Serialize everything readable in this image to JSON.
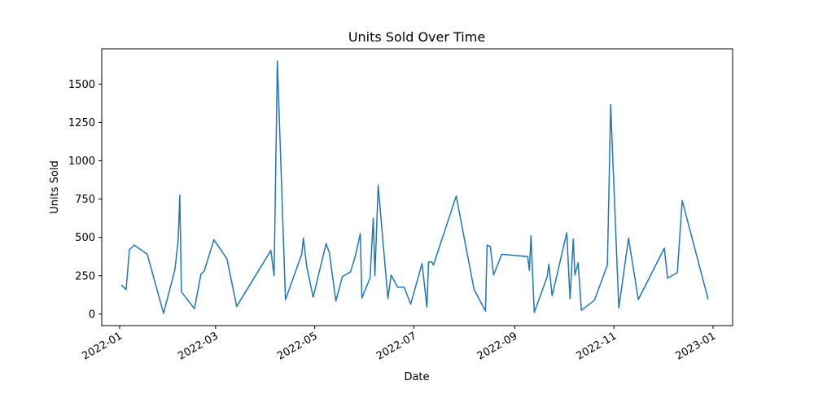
{
  "chart_data": {
    "type": "line",
    "title": "Units Sold Over Time",
    "xlabel": "Date",
    "ylabel": "Units Sold",
    "x_type": "date",
    "xlim": [
      "2021-12-21",
      "2023-01-13"
    ],
    "ylim": [
      -75,
      1730
    ],
    "grid": false,
    "x_ticks": [
      "2022-01",
      "2022-03",
      "2022-05",
      "2022-07",
      "2022-09",
      "2022-11",
      "2023-01"
    ],
    "y_ticks": [
      0,
      250,
      500,
      750,
      1000,
      1250,
      1500
    ],
    "line_color": "#1f77b4",
    "series": [
      {
        "x": [
          "2022-01-02",
          "2022-01-05",
          "2022-01-07",
          "2022-01-10",
          "2022-01-18",
          "2022-01-28",
          "2022-02-04",
          "2022-02-06",
          "2022-02-07",
          "2022-02-08",
          "2022-02-16",
          "2022-02-20",
          "2022-02-22",
          "2022-02-28",
          "2022-03-08",
          "2022-03-14",
          "2022-04-04",
          "2022-04-06",
          "2022-04-08",
          "2022-04-13",
          "2022-04-23",
          "2022-04-24",
          "2022-04-26",
          "2022-04-30",
          "2022-05-08",
          "2022-05-10",
          "2022-05-14",
          "2022-05-18",
          "2022-05-23",
          "2022-05-26",
          "2022-05-29",
          "2022-05-30",
          "2022-06-04",
          "2022-06-06",
          "2022-06-07",
          "2022-06-09",
          "2022-06-15",
          "2022-06-17",
          "2022-06-21",
          "2022-06-25",
          "2022-06-29",
          "2022-07-06",
          "2022-07-09",
          "2022-07-10",
          "2022-07-12",
          "2022-07-13",
          "2022-07-27",
          "2022-08-07",
          "2022-08-14",
          "2022-08-15",
          "2022-08-17",
          "2022-08-19",
          "2022-08-24",
          "2022-09-09",
          "2022-09-10",
          "2022-09-11",
          "2022-09-13",
          "2022-09-21",
          "2022-09-22",
          "2022-09-24",
          "2022-10-03",
          "2022-10-05",
          "2022-10-07",
          "2022-10-08",
          "2022-10-10",
          "2022-10-12",
          "2022-10-20",
          "2022-10-28",
          "2022-10-30",
          "2022-11-04",
          "2022-11-10",
          "2022-11-16",
          "2022-12-02",
          "2022-12-04",
          "2022-12-10",
          "2022-12-13",
          "2022-12-29"
        ],
        "values": [
          190,
          160,
          420,
          450,
          390,
          5,
          290,
          480,
          775,
          145,
          35,
          260,
          280,
          485,
          360,
          50,
          415,
          250,
          1650,
          95,
          390,
          495,
          315,
          110,
          460,
          400,
          85,
          245,
          275,
          380,
          525,
          105,
          235,
          625,
          250,
          840,
          100,
          255,
          175,
          175,
          65,
          330,
          45,
          340,
          340,
          320,
          770,
          160,
          20,
          450,
          440,
          255,
          390,
          375,
          285,
          510,
          10,
          245,
          325,
          120,
          530,
          100,
          490,
          255,
          335,
          25,
          90,
          320,
          1365,
          40,
          495,
          95,
          430,
          235,
          270,
          740,
          95
        ]
      }
    ]
  }
}
